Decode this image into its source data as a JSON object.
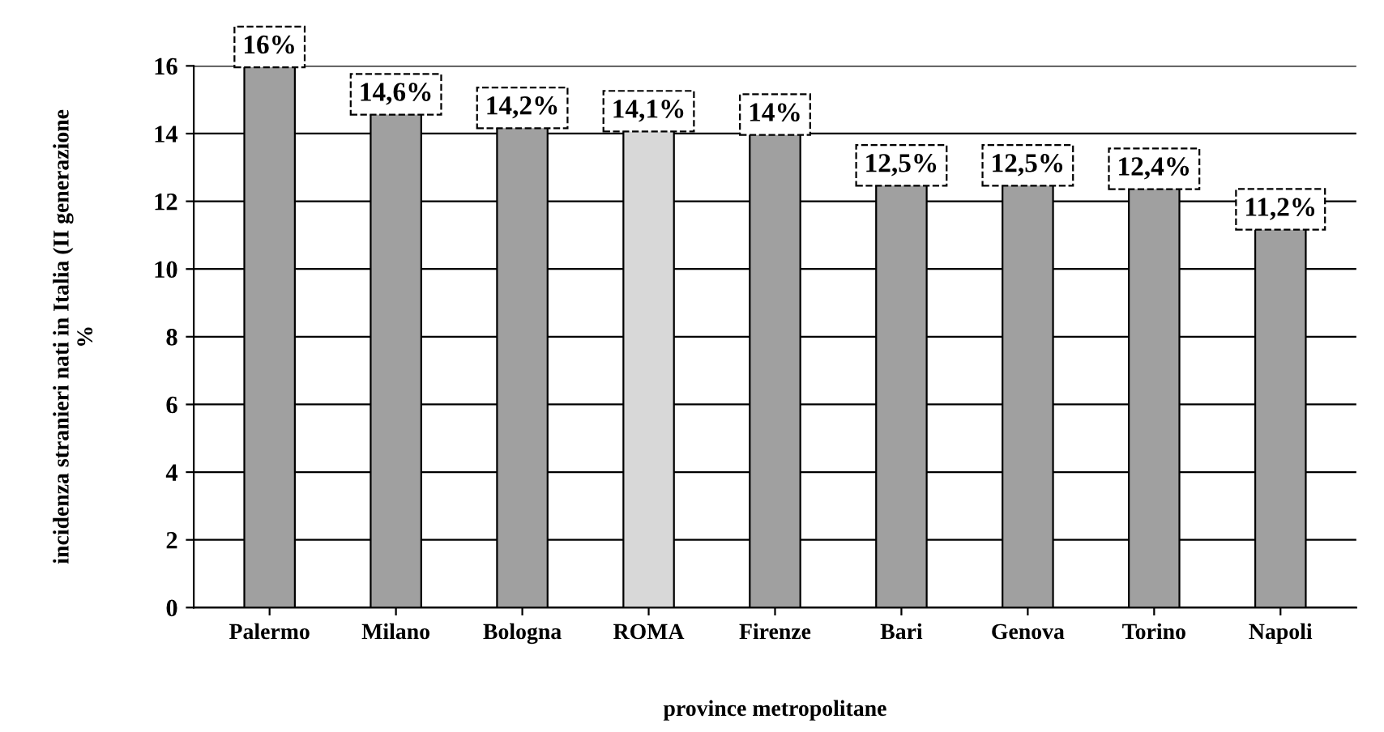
{
  "chart_data": {
    "type": "bar",
    "xlabel": "province metropolitane",
    "ylabel": "incidenza stranieri nati in Italia (II generazione\n%",
    "categories": [
      "Palermo",
      "Milano",
      "Bologna",
      "ROMA",
      "Firenze",
      "Bari",
      "Genova",
      "Torino",
      "Napoli"
    ],
    "values": [
      16,
      14.6,
      14.2,
      14.1,
      14,
      12.5,
      12.5,
      12.4,
      11.2
    ],
    "colors": [
      "#a0a0a0",
      "#a0a0a0",
      "#a0a0a0",
      "#d8d8d8",
      "#a0a0a0",
      "#a0a0a0",
      "#a0a0a0",
      "#a0a0a0",
      "#a0a0a0"
    ],
    "value_labels": [
      "16%",
      "14,6%",
      "14,2%",
      "14,1%",
      "14%",
      "12,5%",
      "12,5%",
      "12,4%",
      "11,2%"
    ],
    "ylim": [
      0,
      16
    ],
    "yticks": [
      0,
      2,
      4,
      6,
      8,
      10,
      12,
      14,
      16
    ],
    "grid": "y",
    "legend": false
  }
}
